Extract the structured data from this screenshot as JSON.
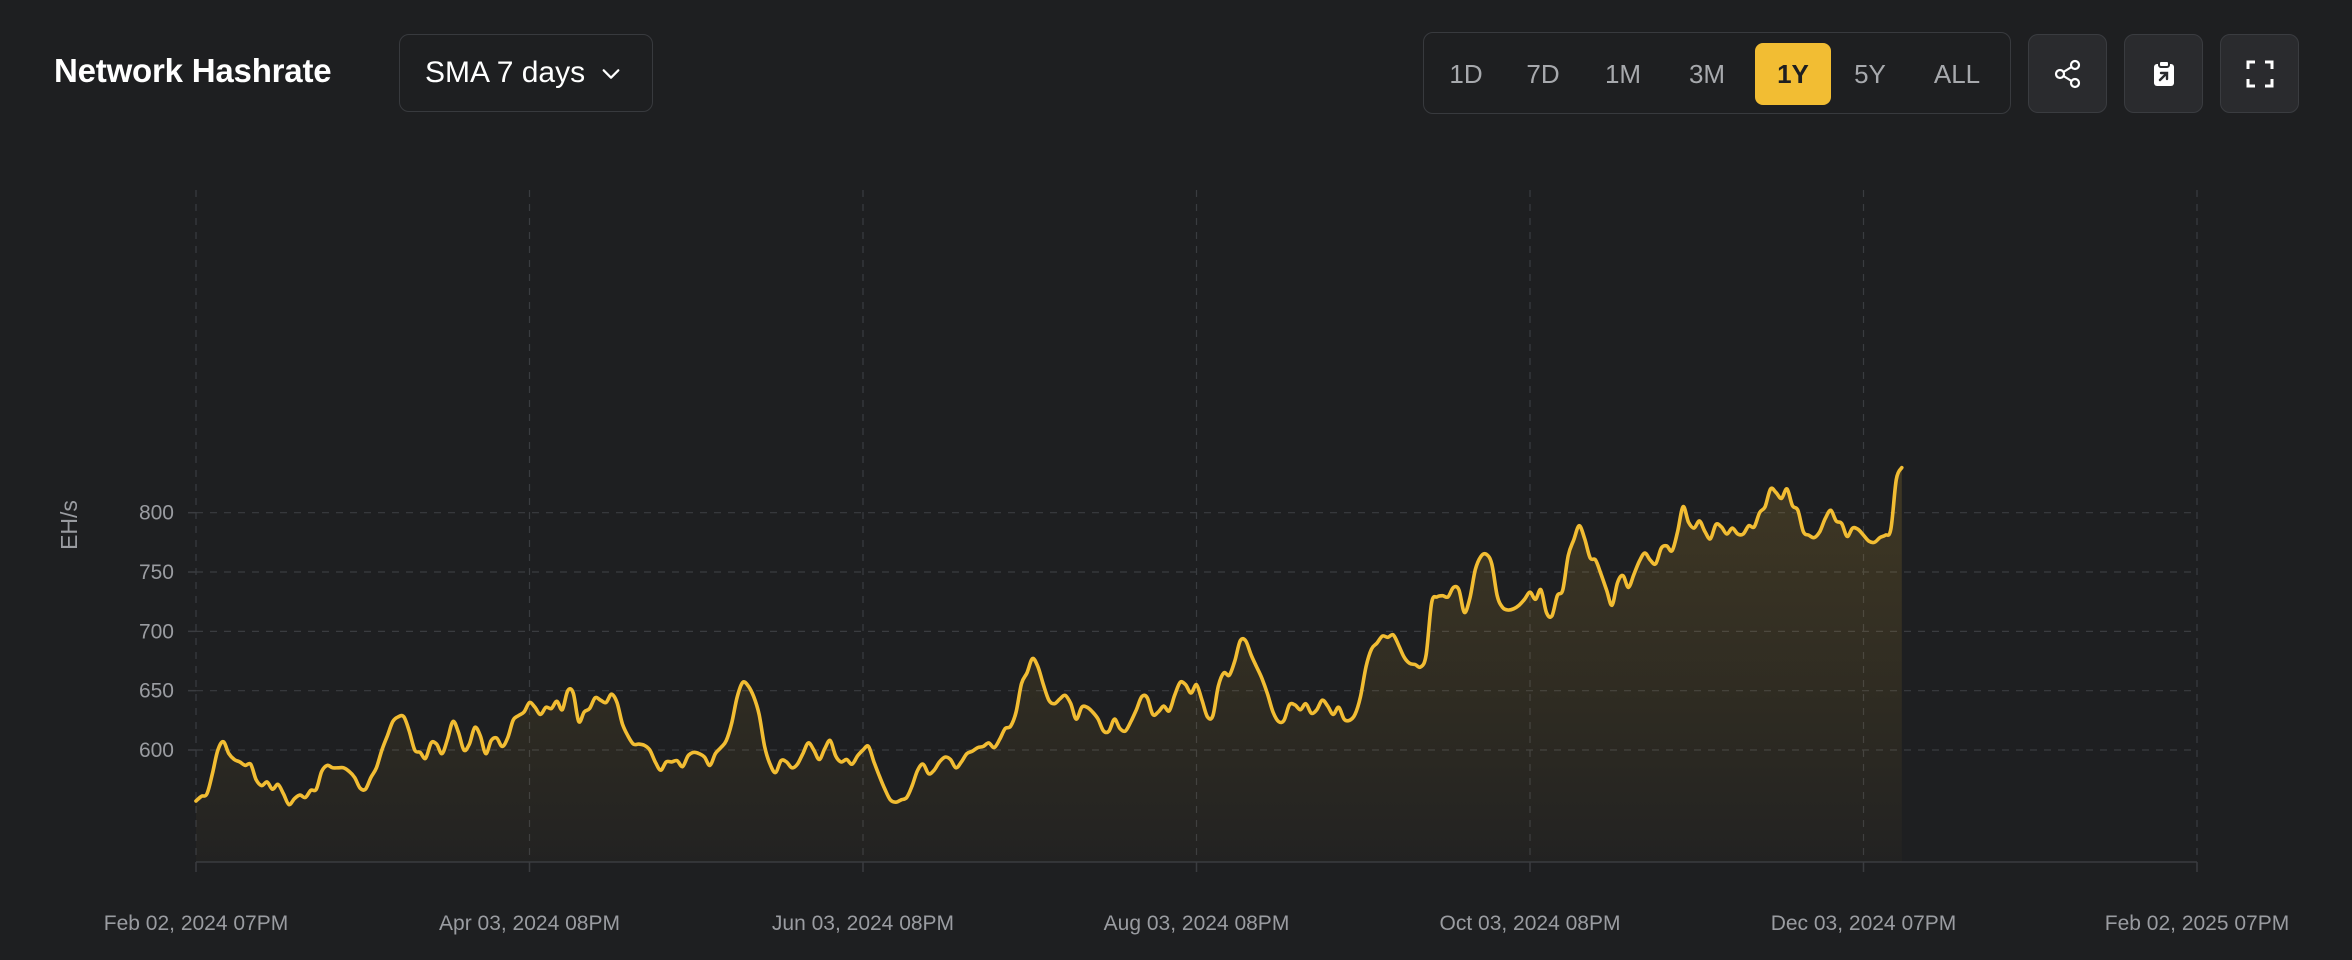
{
  "header": {
    "title": "Network Hashrate",
    "sma_select": {
      "value": "SMA 7 days"
    },
    "range_buttons": [
      {
        "label": "1D",
        "active": false
      },
      {
        "label": "7D",
        "active": false
      },
      {
        "label": "1M",
        "active": false
      },
      {
        "label": "3M",
        "active": false
      },
      {
        "label": "1Y",
        "active": true
      },
      {
        "label": "5Y",
        "active": false
      },
      {
        "label": "ALL",
        "active": false
      }
    ],
    "icon_buttons": [
      {
        "icon": "share-icon"
      },
      {
        "icon": "clipboard-icon"
      },
      {
        "icon": "fullscreen-icon"
      }
    ]
  },
  "colors": {
    "background": "#1e1f21",
    "accent": "#f2bd33",
    "grid": "#3a3c40",
    "tick_text": "#9a9ca1"
  },
  "chart_data": {
    "type": "area",
    "ylabel": "EH/s",
    "xlabel": "",
    "ylim": [
      553,
      838
    ],
    "yticks": [
      600,
      650,
      700,
      750,
      800
    ],
    "x_range_days": [
      0,
      366
    ],
    "xticks": [
      {
        "day": 0,
        "label": "Feb 02, 2024 07PM"
      },
      {
        "day": 61,
        "label": "Apr 03, 2024 08PM"
      },
      {
        "day": 122,
        "label": "Jun 03, 2024 08PM"
      },
      {
        "day": 183,
        "label": "Aug 03, 2024 08PM"
      },
      {
        "day": 244,
        "label": "Oct 03, 2024 08PM"
      },
      {
        "day": 305,
        "label": "Dec 03, 2024 07PM"
      },
      {
        "day": 366,
        "label": "Feb 02, 2025 07PM"
      }
    ],
    "grid": true,
    "legend": "none",
    "series": [
      {
        "name": "",
        "color": "#f2bd33",
        "fill": true,
        "points": [
          [
            0,
            557
          ],
          [
            1,
            561
          ],
          [
            2,
            563
          ],
          [
            3,
            580
          ],
          [
            4,
            600
          ],
          [
            5,
            607
          ],
          [
            6,
            597
          ],
          [
            7,
            592
          ],
          [
            8,
            590
          ],
          [
            9,
            587
          ],
          [
            10,
            588
          ],
          [
            11,
            575
          ],
          [
            12,
            570
          ],
          [
            13,
            573
          ],
          [
            14,
            567
          ],
          [
            15,
            571
          ],
          [
            16,
            563
          ],
          [
            17,
            554
          ],
          [
            18,
            559
          ],
          [
            19,
            562
          ],
          [
            20,
            560
          ],
          [
            21,
            566
          ],
          [
            22,
            567
          ],
          [
            23,
            582
          ],
          [
            24,
            587
          ],
          [
            25,
            585
          ],
          [
            26,
            585
          ],
          [
            27,
            585
          ],
          [
            28,
            582
          ],
          [
            29,
            577
          ],
          [
            30,
            568
          ],
          [
            31,
            567
          ],
          [
            32,
            577
          ],
          [
            33,
            585
          ],
          [
            34,
            600
          ],
          [
            35,
            612
          ],
          [
            36,
            624
          ],
          [
            37,
            628
          ],
          [
            38,
            628
          ],
          [
            39,
            616
          ],
          [
            40,
            600
          ],
          [
            41,
            598
          ],
          [
            42,
            593
          ],
          [
            43,
            606
          ],
          [
            44,
            605
          ],
          [
            45,
            597
          ],
          [
            46,
            609
          ],
          [
            47,
            624
          ],
          [
            48,
            615
          ],
          [
            49,
            600
          ],
          [
            50,
            605
          ],
          [
            51,
            619
          ],
          [
            52,
            612
          ],
          [
            53,
            597
          ],
          [
            54,
            608
          ],
          [
            55,
            610
          ],
          [
            56,
            603
          ],
          [
            57,
            610
          ],
          [
            58,
            625
          ],
          [
            59,
            629
          ],
          [
            60,
            632
          ],
          [
            61,
            640
          ],
          [
            62,
            636
          ],
          [
            63,
            630
          ],
          [
            64,
            636
          ],
          [
            65,
            635
          ],
          [
            66,
            641
          ],
          [
            67,
            634
          ],
          [
            68,
            650
          ],
          [
            69,
            648
          ],
          [
            70,
            624
          ],
          [
            71,
            632
          ],
          [
            72,
            635
          ],
          [
            73,
            644
          ],
          [
            74,
            642
          ],
          [
            75,
            640
          ],
          [
            76,
            647
          ],
          [
            77,
            640
          ],
          [
            78,
            622
          ],
          [
            79,
            612
          ],
          [
            80,
            605
          ],
          [
            81,
            605
          ],
          [
            82,
            604
          ],
          [
            83,
            600
          ],
          [
            84,
            590
          ],
          [
            85,
            583
          ],
          [
            86,
            590
          ],
          [
            87,
            590
          ],
          [
            88,
            591
          ],
          [
            89,
            586
          ],
          [
            90,
            595
          ],
          [
            91,
            598
          ],
          [
            92,
            597
          ],
          [
            93,
            594
          ],
          [
            94,
            587
          ],
          [
            95,
            597
          ],
          [
            96,
            602
          ],
          [
            97,
            608
          ],
          [
            98,
            623
          ],
          [
            99,
            645
          ],
          [
            100,
            657
          ],
          [
            101,
            654
          ],
          [
            102,
            645
          ],
          [
            103,
            630
          ],
          [
            104,
            603
          ],
          [
            105,
            588
          ],
          [
            106,
            581
          ],
          [
            107,
            591
          ],
          [
            108,
            590
          ],
          [
            109,
            585
          ],
          [
            110,
            588
          ],
          [
            111,
            597
          ],
          [
            112,
            606
          ],
          [
            113,
            600
          ],
          [
            114,
            592
          ],
          [
            115,
            601
          ],
          [
            116,
            608
          ],
          [
            117,
            595
          ],
          [
            118,
            590
          ],
          [
            119,
            592
          ],
          [
            120,
            588
          ],
          [
            121,
            595
          ],
          [
            122,
            600
          ],
          [
            123,
            603
          ],
          [
            124,
            590
          ],
          [
            125,
            578
          ],
          [
            126,
            567
          ],
          [
            127,
            558
          ],
          [
            128,
            556
          ],
          [
            129,
            558
          ],
          [
            130,
            560
          ],
          [
            131,
            570
          ],
          [
            132,
            583
          ],
          [
            133,
            588
          ],
          [
            134,
            580
          ],
          [
            135,
            583
          ],
          [
            136,
            590
          ],
          [
            137,
            594
          ],
          [
            138,
            592
          ],
          [
            139,
            585
          ],
          [
            140,
            590
          ],
          [
            141,
            597
          ],
          [
            142,
            599
          ],
          [
            143,
            602
          ],
          [
            144,
            603
          ],
          [
            145,
            606
          ],
          [
            146,
            602
          ],
          [
            147,
            609
          ],
          [
            148,
            618
          ],
          [
            149,
            620
          ],
          [
            150,
            632
          ],
          [
            151,
            656
          ],
          [
            152,
            665
          ],
          [
            153,
            677
          ],
          [
            154,
            670
          ],
          [
            155,
            655
          ],
          [
            156,
            642
          ],
          [
            157,
            639
          ],
          [
            158,
            643
          ],
          [
            159,
            646
          ],
          [
            160,
            639
          ],
          [
            161,
            626
          ],
          [
            162,
            636
          ],
          [
            163,
            636
          ],
          [
            164,
            632
          ],
          [
            165,
            626
          ],
          [
            166,
            616
          ],
          [
            167,
            616
          ],
          [
            168,
            626
          ],
          [
            169,
            618
          ],
          [
            170,
            616
          ],
          [
            171,
            624
          ],
          [
            172,
            634
          ],
          [
            173,
            645
          ],
          [
            174,
            644
          ],
          [
            175,
            630
          ],
          [
            176,
            632
          ],
          [
            177,
            637
          ],
          [
            178,
            633
          ],
          [
            179,
            646
          ],
          [
            180,
            657
          ],
          [
            181,
            655
          ],
          [
            182,
            648
          ],
          [
            183,
            655
          ],
          [
            184,
            642
          ],
          [
            185,
            628
          ],
          [
            186,
            629
          ],
          [
            187,
            654
          ],
          [
            188,
            665
          ],
          [
            189,
            663
          ],
          [
            190,
            675
          ],
          [
            191,
            692
          ],
          [
            192,
            692
          ],
          [
            193,
            680
          ],
          [
            194,
            670
          ],
          [
            195,
            660
          ],
          [
            196,
            647
          ],
          [
            197,
            632
          ],
          [
            198,
            624
          ],
          [
            199,
            625
          ],
          [
            200,
            638
          ],
          [
            201,
            638
          ],
          [
            202,
            634
          ],
          [
            203,
            639
          ],
          [
            204,
            631
          ],
          [
            205,
            634
          ],
          [
            206,
            642
          ],
          [
            207,
            637
          ],
          [
            208,
            630
          ],
          [
            209,
            636
          ],
          [
            210,
            626
          ],
          [
            211,
            625
          ],
          [
            212,
            630
          ],
          [
            213,
            645
          ],
          [
            214,
            670
          ],
          [
            215,
            685
          ],
          [
            216,
            690
          ],
          [
            217,
            696
          ],
          [
            218,
            695
          ],
          [
            219,
            697
          ],
          [
            220,
            688
          ],
          [
            221,
            678
          ],
          [
            222,
            673
          ],
          [
            223,
            672
          ],
          [
            224,
            670
          ],
          [
            225,
            680
          ],
          [
            226,
            724
          ],
          [
            227,
            729
          ],
          [
            228,
            730
          ],
          [
            229,
            729
          ],
          [
            230,
            737
          ],
          [
            231,
            735
          ],
          [
            232,
            716
          ],
          [
            233,
            728
          ],
          [
            234,
            752
          ],
          [
            235,
            763
          ],
          [
            236,
            765
          ],
          [
            237,
            757
          ],
          [
            238,
            730
          ],
          [
            239,
            720
          ],
          [
            240,
            718
          ],
          [
            241,
            719
          ],
          [
            242,
            722
          ],
          [
            243,
            727
          ],
          [
            244,
            733
          ],
          [
            245,
            727
          ],
          [
            246,
            735
          ],
          [
            247,
            716
          ],
          [
            248,
            713
          ],
          [
            249,
            730
          ],
          [
            250,
            735
          ],
          [
            251,
            764
          ],
          [
            252,
            777
          ],
          [
            253,
            789
          ],
          [
            254,
            778
          ],
          [
            255,
            762
          ],
          [
            256,
            760
          ],
          [
            257,
            748
          ],
          [
            258,
            735
          ],
          [
            259,
            722
          ],
          [
            260,
            741
          ],
          [
            261,
            747
          ],
          [
            262,
            737
          ],
          [
            263,
            748
          ],
          [
            264,
            759
          ],
          [
            265,
            766
          ],
          [
            266,
            760
          ],
          [
            267,
            757
          ],
          [
            268,
            770
          ],
          [
            269,
            772
          ],
          [
            270,
            768
          ],
          [
            271,
            784
          ],
          [
            272,
            805
          ],
          [
            273,
            792
          ],
          [
            274,
            787
          ],
          [
            275,
            793
          ],
          [
            276,
            784
          ],
          [
            277,
            778
          ],
          [
            278,
            790
          ],
          [
            279,
            788
          ],
          [
            280,
            782
          ],
          [
            281,
            787
          ],
          [
            282,
            782
          ],
          [
            283,
            782
          ],
          [
            284,
            789
          ],
          [
            285,
            788
          ],
          [
            286,
            800
          ],
          [
            287,
            805
          ],
          [
            288,
            820
          ],
          [
            289,
            817
          ],
          [
            290,
            812
          ],
          [
            291,
            820
          ],
          [
            292,
            806
          ],
          [
            293,
            802
          ],
          [
            294,
            784
          ],
          [
            295,
            781
          ],
          [
            296,
            779
          ],
          [
            297,
            784
          ],
          [
            298,
            795
          ],
          [
            299,
            802
          ],
          [
            300,
            793
          ],
          [
            301,
            791
          ],
          [
            302,
            780
          ],
          [
            303,
            787
          ],
          [
            304,
            786
          ],
          [
            305,
            781
          ],
          [
            306,
            776
          ],
          [
            307,
            775
          ],
          [
            308,
            779
          ],
          [
            309,
            781
          ],
          [
            310,
            786
          ],
          [
            311,
            828
          ],
          [
            312,
            838
          ]
        ]
      }
    ]
  }
}
